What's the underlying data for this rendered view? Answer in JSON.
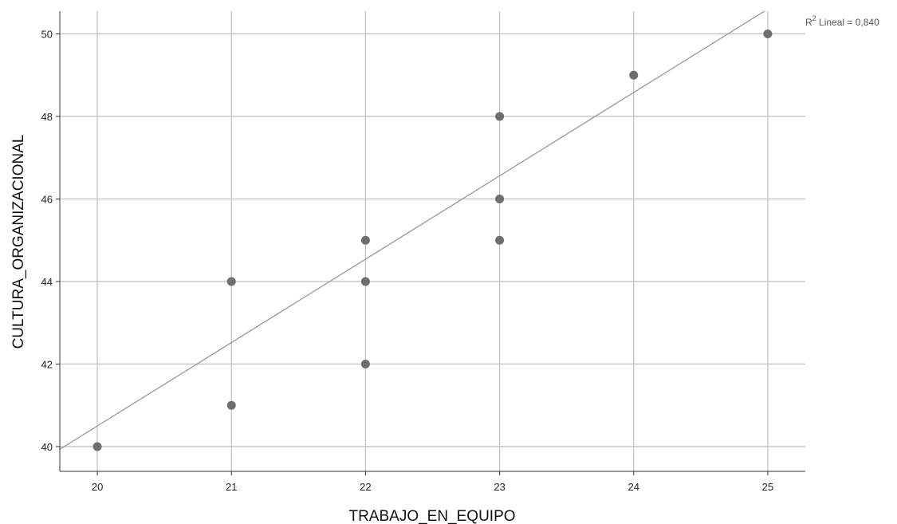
{
  "chart_data": {
    "type": "scatter",
    "xlabel": "TRABAJO_EN_EQUIPO",
    "ylabel": "CULTURA_ORGANIZACIONAL",
    "xlim": [
      19.72,
      25.28
    ],
    "ylim": [
      39.4,
      50.55
    ],
    "xticks": [
      "20",
      "21",
      "22",
      "23",
      "24",
      "25"
    ],
    "yticks": [
      "40",
      "42",
      "44",
      "46",
      "48",
      "50"
    ],
    "grid": true,
    "points": [
      {
        "x": 20,
        "y": 40
      },
      {
        "x": 21,
        "y": 41
      },
      {
        "x": 21,
        "y": 44
      },
      {
        "x": 22,
        "y": 42
      },
      {
        "x": 22,
        "y": 44
      },
      {
        "x": 22,
        "y": 45
      },
      {
        "x": 23,
        "y": 45
      },
      {
        "x": 23,
        "y": 46
      },
      {
        "x": 23,
        "y": 48
      },
      {
        "x": 24,
        "y": 49
      },
      {
        "x": 25,
        "y": 50
      }
    ],
    "fit_line": {
      "slope": 2.02,
      "intercept": 0.1,
      "r2_label_prefix": "R",
      "r2_label_sup": "2",
      "r2_label_suffix": " Lineal = 0,840"
    },
    "colors": {
      "point": "#6e6e6e",
      "fit": "#9a9a9a",
      "grid": "#c4c4c4",
      "axis": "#333333"
    }
  }
}
